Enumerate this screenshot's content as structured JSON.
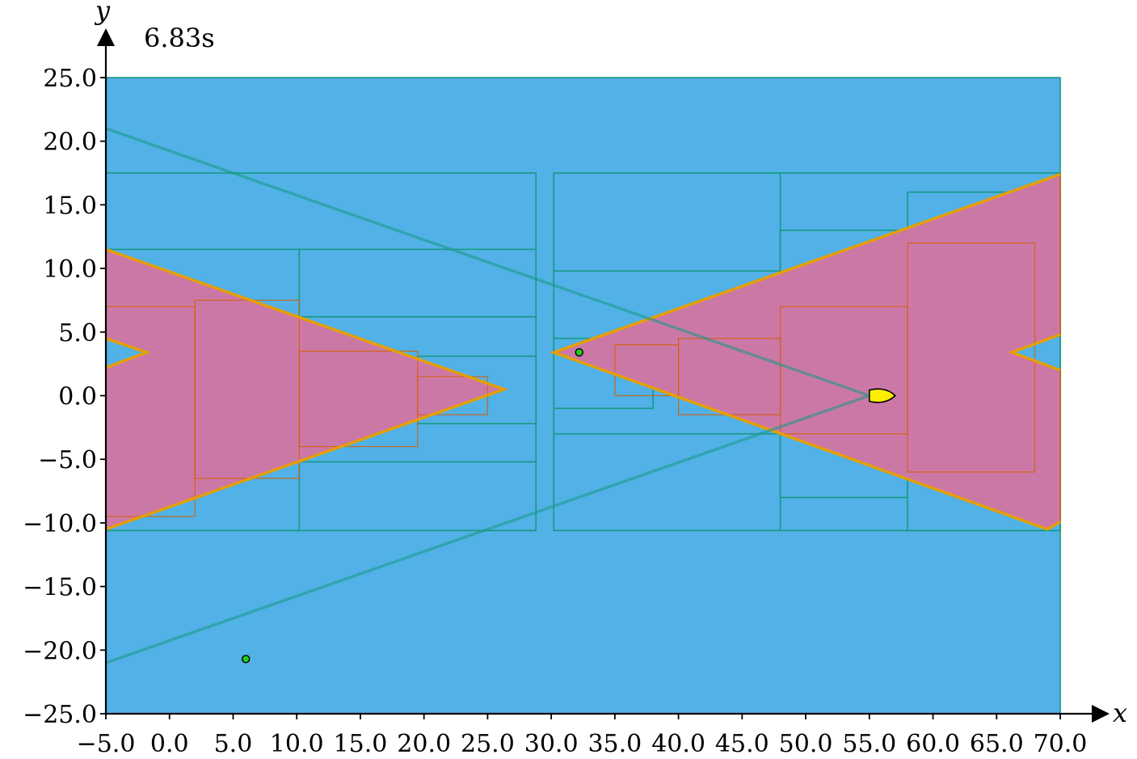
{
  "chart_data": {
    "type": "paving",
    "title": "",
    "time_label": "6.83s",
    "xlabel": "x",
    "ylabel": "y",
    "xlim": [
      -5,
      70
    ],
    "ylim": [
      -25,
      25
    ],
    "x_ticks": [
      "−5.0",
      "0.0",
      "5.0",
      "10.0",
      "15.0",
      "20.0",
      "25.0",
      "30.0",
      "35.0",
      "40.0",
      "45.0",
      "50.0",
      "55.0",
      "60.0",
      "65.0",
      "70.0"
    ],
    "y_ticks": [
      "25.0",
      "20.0",
      "15.0",
      "10.0",
      "5.0",
      "0.0",
      "−5.0",
      "−10.0",
      "−15.0",
      "−20.0",
      "−25.0"
    ],
    "colors": {
      "outer_box": "#52b1e6",
      "box_edge": "#169a84",
      "inner_fill": "#cc78a7",
      "inner_edge": "#d55e00",
      "boundary": "#e69f00",
      "robot": "#ffee00",
      "landmark": "#22cc22"
    },
    "outer_boxes": [
      {
        "x0": -5,
        "x1": 70,
        "y0": -25,
        "y1": 25
      },
      {
        "x0": -5,
        "x1": 28.8,
        "y0": -10.6,
        "y1": 17.5
      },
      {
        "x0": 30.2,
        "x1": 70,
        "y0": -10.6,
        "y1": 17.5
      },
      {
        "x0": -5,
        "x1": 10.2,
        "y0": -10.6,
        "y1": 11.5
      },
      {
        "x0": 10.2,
        "x1": 28.8,
        "y0": -5.2,
        "y1": 6.2
      },
      {
        "x0": 10.2,
        "x1": 28.8,
        "y0": -10.6,
        "y1": -5.2
      },
      {
        "x0": 10.2,
        "x1": 28.8,
        "y0": 6.2,
        "y1": 11.5
      },
      {
        "x0": 19.5,
        "x1": 28.8,
        "y0": -2.2,
        "y1": 3.1
      },
      {
        "x0": 30.2,
        "x1": 48,
        "y0": -3,
        "y1": 9.8
      },
      {
        "x0": 48,
        "x1": 70,
        "y0": -10.6,
        "y1": 17.5
      },
      {
        "x0": 48,
        "x1": 58,
        "y0": -8,
        "y1": 13
      },
      {
        "x0": 58,
        "x1": 70,
        "y0": -10.6,
        "y1": 16
      },
      {
        "x0": 30.2,
        "x1": 38,
        "y0": -1,
        "y1": 4.5
      }
    ],
    "inner_boxes": [
      {
        "x0": -5,
        "x1": 2,
        "y0": -9.5,
        "y1": 7
      },
      {
        "x0": 2,
        "x1": 10.2,
        "y0": -6.5,
        "y1": 7.5
      },
      {
        "x0": 10.2,
        "x1": 19.5,
        "y0": -4,
        "y1": 3.5
      },
      {
        "x0": 19.5,
        "x1": 25,
        "y0": -1.5,
        "y1": 1.5
      },
      {
        "x0": 40,
        "x1": 48,
        "y0": -1.5,
        "y1": 4.5
      },
      {
        "x0": 48,
        "x1": 58,
        "y0": -3,
        "y1": 7
      },
      {
        "x0": 58,
        "x1": 68,
        "y0": -6,
        "y1": 12
      },
      {
        "x0": 35,
        "x1": 40,
        "y0": 0,
        "y1": 4
      }
    ],
    "inner_polygons": [
      [
        [
          -5,
          11.5
        ],
        [
          26.3,
          0.5
        ],
        [
          -5,
          -10.5
        ],
        [
          -5,
          2.2
        ],
        [
          -1.8,
          3.4
        ],
        [
          -5,
          4.5
        ]
      ],
      [
        [
          30.2,
          3.4
        ],
        [
          70,
          17.4
        ],
        [
          70,
          4.8
        ],
        [
          66.2,
          3.4
        ],
        [
          70,
          2
        ],
        [
          70,
          -9.9
        ],
        [
          69,
          -10.5
        ]
      ]
    ],
    "boundary_lines": [
      [
        [
          -5,
          11.5
        ],
        [
          26.3,
          0.5
        ],
        [
          -5,
          -10.5
        ]
      ],
      [
        [
          -5,
          4.5
        ],
        [
          -1.8,
          3.4
        ],
        [
          -5,
          2.2
        ]
      ],
      [
        [
          70,
          17.4
        ],
        [
          30.2,
          3.4
        ],
        [
          69,
          -10.5
        ],
        [
          70,
          -9.9
        ]
      ],
      [
        [
          70,
          4.8
        ],
        [
          66.2,
          3.4
        ],
        [
          70,
          2
        ]
      ]
    ],
    "beam_lines": [
      [
        [
          -5,
          21
        ],
        [
          55,
          0
        ]
      ],
      [
        [
          -5,
          -21
        ],
        [
          55,
          0
        ]
      ]
    ],
    "robot": {
      "x": 55,
      "y": 0
    },
    "landmarks": [
      {
        "x": 32.2,
        "y": 3.4
      },
      {
        "x": 6,
        "y": -20.7
      }
    ]
  }
}
